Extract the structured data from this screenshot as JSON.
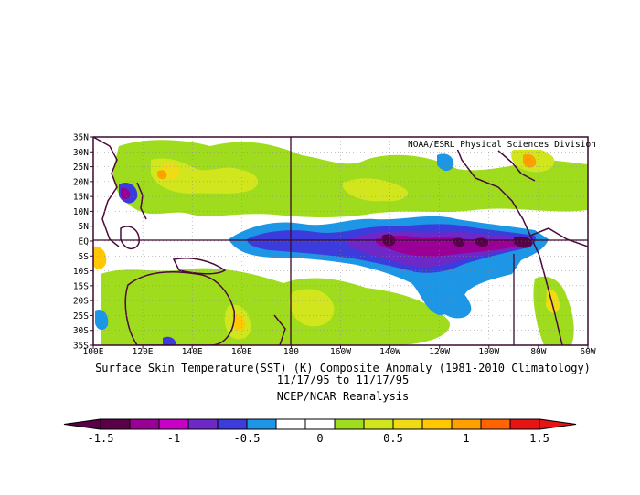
{
  "map": {
    "credit": "NOAA/ESRL Physical Sciences Division",
    "lat_labels": [
      "35N",
      "30N",
      "25N",
      "20N",
      "15N",
      "10N",
      "5N",
      "EQ",
      "5S",
      "10S",
      "15S",
      "20S",
      "25S",
      "30S",
      "35S"
    ],
    "lon_labels": [
      "100E",
      "120E",
      "140E",
      "160E",
      "180",
      "160W",
      "140W",
      "120W",
      "100W",
      "80W",
      "60W"
    ],
    "extent": {
      "lon_min": 100,
      "lon_max": 300,
      "lat_min": -35,
      "lat_max": 35
    }
  },
  "caption": {
    "line1": "Surface Skin Temperature(SST) (K) Composite Anomaly (1981-2010 Climatology)",
    "line2": "11/17/95  to 11/17/95",
    "line3": "NCEP/NCAR Reanalysis"
  },
  "colorbar": {
    "tick_labels": [
      "-1.5",
      "-1",
      "-0.5",
      "0",
      "0.5",
      "1",
      "1.5"
    ],
    "colors": [
      "#5a0048",
      "#9a0096",
      "#c800c8",
      "#6e28c8",
      "#3c3cdc",
      "#1e96e6",
      "#ffffff",
      "#ffffff",
      "#a0dc1e",
      "#d2e61e",
      "#f0dc14",
      "#ffc800",
      "#ffa000",
      "#ff6400",
      "#e61414"
    ]
  },
  "anomaly_regions": [
    {
      "level": -1.5,
      "color": "#5a0048"
    },
    {
      "level": -1.25,
      "color": "#9a0096"
    },
    {
      "level": -1.0,
      "color": "#6e28c8"
    },
    {
      "level": -0.75,
      "color": "#3c3cdc"
    },
    {
      "level": -0.5,
      "color": "#1e96e6"
    },
    {
      "level": 0.5,
      "color": "#a0dc1e"
    },
    {
      "level": 0.75,
      "color": "#d2e61e"
    },
    {
      "level": 1.0,
      "color": "#ffc800"
    },
    {
      "level": 1.25,
      "color": "#ffa000"
    }
  ]
}
